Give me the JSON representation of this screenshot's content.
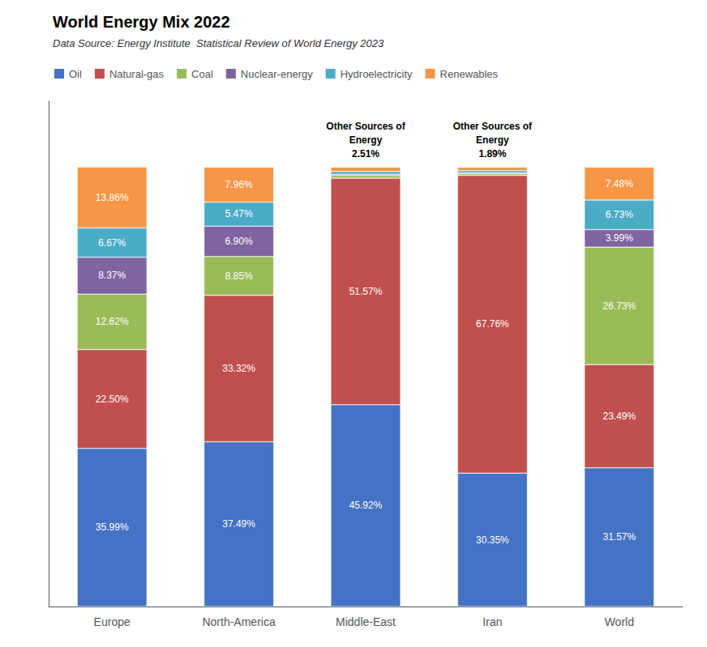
{
  "chart_data": {
    "type": "bar",
    "title": "World Energy Mix 2022",
    "subtitle": "Data Source: Energy Institute  Statistical Review of World Energy 2023",
    "categories": [
      "Europe",
      "North-America",
      "Middle-East",
      "Iran",
      "World"
    ],
    "stacked": true,
    "data_labels": true,
    "series": [
      {
        "name": "Oil",
        "color": "#4472C4",
        "values": [
          35.99,
          37.49,
          45.92,
          30.35,
          31.57
        ],
        "value_labels": [
          "35.99%",
          "37.49%",
          "45.92%",
          "30.35%",
          "31.57%"
        ]
      },
      {
        "name": "Natural-gas",
        "color": "#C0504D",
        "values": [
          22.5,
          33.32,
          51.57,
          67.76,
          23.49
        ],
        "value_labels": [
          "22.50%",
          "33.32%",
          "51.57%",
          "67.76%",
          "23.49%"
        ]
      },
      {
        "name": "Coal",
        "color": "#9BBB59",
        "values": [
          12.62,
          8.85,
          0.6,
          0.4,
          26.73
        ],
        "value_labels": [
          "12.62%",
          "8.85%",
          null,
          null,
          "26.73%"
        ]
      },
      {
        "name": "Nuclear-energy",
        "color": "#8064A2",
        "values": [
          8.37,
          6.9,
          0.3,
          0.2,
          3.99
        ],
        "value_labels": [
          "8.37%",
          "6.90%",
          null,
          null,
          "3.99%"
        ]
      },
      {
        "name": "Hydroelectricity",
        "color": "#4BACC6",
        "values": [
          6.67,
          5.47,
          0.6,
          0.5,
          6.73
        ],
        "value_labels": [
          "6.67%",
          "5.47%",
          null,
          null,
          "6.73%"
        ]
      },
      {
        "name": "Renewables",
        "color": "#F79646",
        "values": [
          13.86,
          7.96,
          1.01,
          0.79,
          7.48
        ],
        "value_labels": [
          "13.86%",
          "7.96%",
          null,
          null,
          "7.48%"
        ]
      }
    ],
    "annotations": [
      {
        "category": "Middle-East",
        "text": "Other Sources of\nEnergy\n2.51%"
      },
      {
        "category": "Iran",
        "text": "Other Sources of\nEnergy\n1.89%"
      }
    ],
    "ylim": [
      0,
      115
    ],
    "tick_labels": "x",
    "grid": false,
    "legend": "upper left"
  }
}
